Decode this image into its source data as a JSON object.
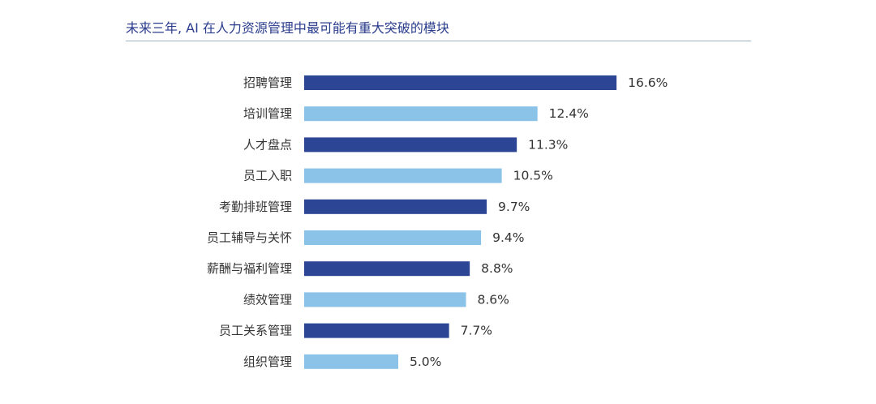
{
  "title": "未来三年, AI 在人力资源管理中最可能有重大突破的模块",
  "colors": {
    "title": "#2b3d8c",
    "rule": "#9eb3c4",
    "bar_dark": "#2d4595",
    "bar_light": "#8bc3e8",
    "text": "#333333"
  },
  "chart_data": {
    "type": "bar",
    "orientation": "horizontal",
    "title": "未来三年, AI 在人力资源管理中最可能有重大突破的模块",
    "unit": "%",
    "categories": [
      "招聘管理",
      "培训管理",
      "人才盘点",
      "员工入职",
      "考勤排班管理",
      "员工辅导与关怀",
      "薪酬与福利管理",
      "绩效管理",
      "员工关系管理",
      "组织管理"
    ],
    "values": [
      16.6,
      12.4,
      11.3,
      10.5,
      9.7,
      9.4,
      8.8,
      8.6,
      7.7,
      5.0
    ],
    "value_labels": [
      "16.6%",
      "12.4%",
      "11.3%",
      "10.5%",
      "9.7%",
      "9.4%",
      "8.8%",
      "8.6%",
      "7.7%",
      "5.0%"
    ],
    "bar_colors": [
      "#2d4595",
      "#8bc3e8",
      "#2d4595",
      "#8bc3e8",
      "#2d4595",
      "#8bc3e8",
      "#2d4595",
      "#8bc3e8",
      "#2d4595",
      "#8bc3e8"
    ],
    "xlabel": "",
    "ylabel": "",
    "grid": false,
    "legend": "none"
  }
}
